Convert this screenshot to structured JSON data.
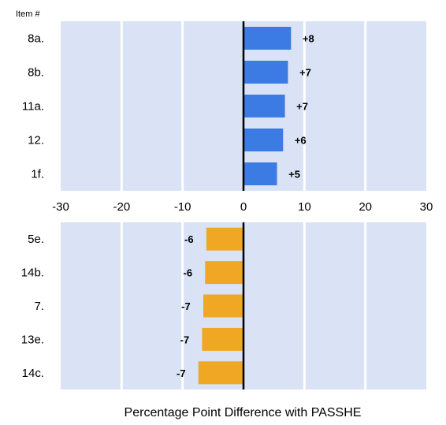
{
  "chart_data": {
    "type": "bar",
    "orientation": "horizontal",
    "category_header": "Item #",
    "xlabel": "Percentage Point Difference with PASSHE",
    "xlim": [
      -30,
      30
    ],
    "xticks": [
      -30,
      -20,
      -10,
      0,
      10,
      20,
      30
    ],
    "grid": true,
    "colors": {
      "plot_bg": "#d9e3f5",
      "gridline": "#ffffff",
      "zero_line": "#000000",
      "positive": "#3c7be3",
      "negative": "#f0a824"
    },
    "panels": [
      {
        "categories": [
          "8a.",
          "8b.",
          "11a.",
          "12.",
          "1f."
        ],
        "values": [
          7.8,
          7.3,
          6.8,
          6.5,
          5.5
        ],
        "value_labels": [
          "+8",
          "+7",
          "+7",
          "+6",
          "+5"
        ]
      },
      {
        "categories": [
          "5e.",
          "14b.",
          "7.",
          "13e.",
          "14c."
        ],
        "values": [
          -6.1,
          -6.3,
          -6.6,
          -6.8,
          -7.4
        ],
        "value_labels": [
          "-6",
          "-6",
          "-7",
          "-7",
          "-7"
        ]
      }
    ]
  }
}
